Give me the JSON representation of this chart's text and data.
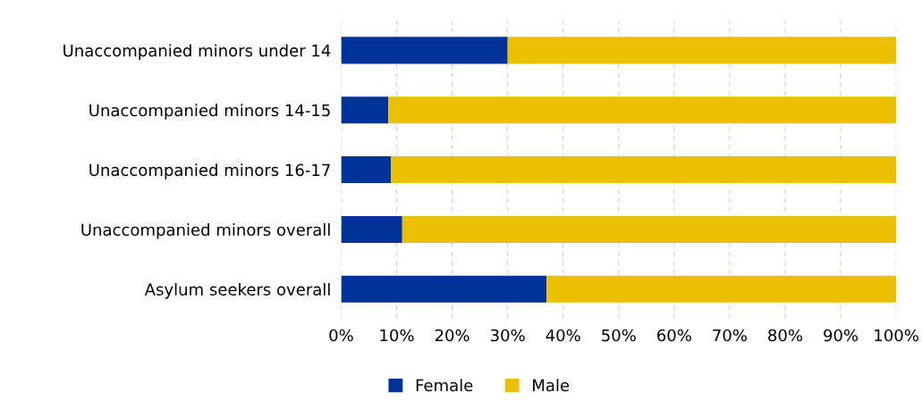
{
  "chart_data": {
    "type": "bar",
    "orientation": "horizontal",
    "stacked": true,
    "categories": [
      "Unaccompanied minors under 14",
      "Unaccompanied minors 14-15",
      "Unaccompanied minors 16-17",
      "Unaccompanied minors overall",
      "Asylum seekers overall"
    ],
    "series": [
      {
        "name": "Female",
        "color": "#003399",
        "values": [
          30,
          8.5,
          9,
          11,
          37
        ]
      },
      {
        "name": "Male",
        "color": "#ebc000",
        "values": [
          70,
          91.5,
          91,
          89,
          63
        ]
      }
    ],
    "xlim": [
      0,
      100
    ],
    "xticks": [
      {
        "value": 0,
        "label": "0%"
      },
      {
        "value": 10,
        "label": "10%"
      },
      {
        "value": 20,
        "label": "20%"
      },
      {
        "value": 30,
        "label": "30%"
      },
      {
        "value": 40,
        "label": "40%"
      },
      {
        "value": 50,
        "label": "50%"
      },
      {
        "value": 60,
        "label": "60%"
      },
      {
        "value": 70,
        "label": "70%"
      },
      {
        "value": 80,
        "label": "80%"
      },
      {
        "value": 90,
        "label": "90%"
      },
      {
        "value": 100,
        "label": "100%"
      }
    ],
    "grid": "x",
    "legend": "bottom"
  }
}
